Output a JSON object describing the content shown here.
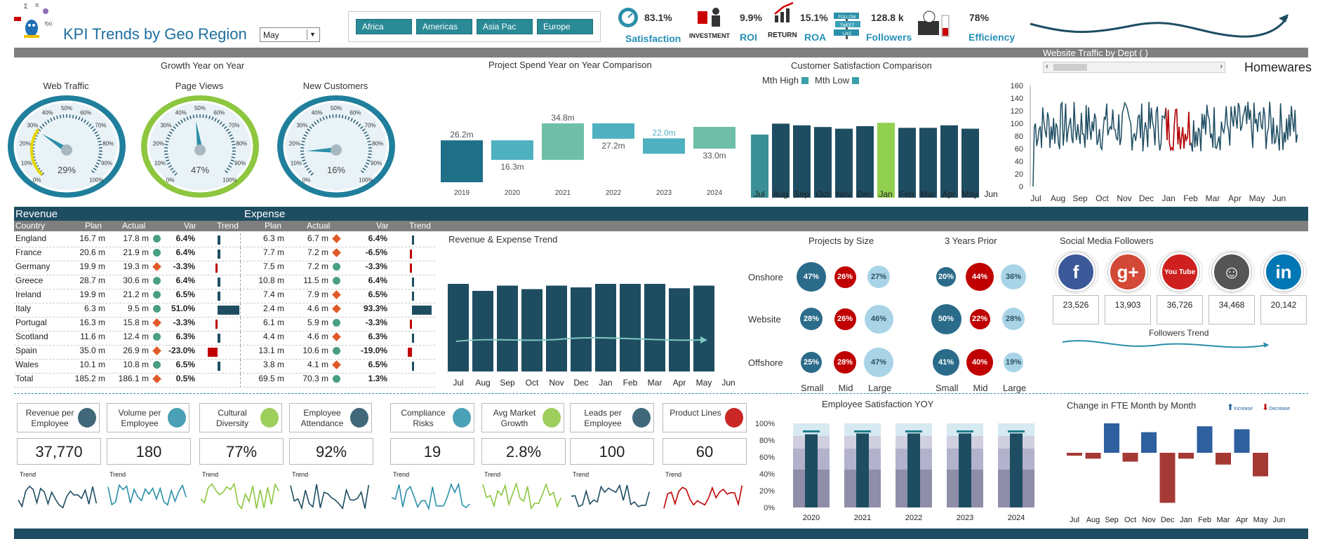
{
  "header": {
    "title": "KPI Trends by Geo Region",
    "month": "May",
    "regions": [
      "Africa",
      "Americas",
      "Asia Pac",
      "Europe"
    ]
  },
  "kpis": [
    {
      "value": "83.1%",
      "label": "Satisfaction",
      "icon": "speedometer-icon"
    },
    {
      "value": "9.9%",
      "label": "ROI",
      "caption": "INVESTMENT",
      "icon": "investment-icon"
    },
    {
      "value": "15.1%",
      "label": "ROA",
      "caption": "RETURN",
      "icon": "return-arrow-icon"
    },
    {
      "value": "128.8 k",
      "label": "Followers",
      "caption": "FOLLOW TWEET LIKE",
      "icon": "followers-sign-icon"
    },
    {
      "value": "78%",
      "label": "Efficiency",
      "icon": "wallet-icon"
    }
  ],
  "sections": {
    "growth": "Growth Year on Year",
    "spend": "Project Spend Year on Year Comparison",
    "csat": "Customer Satisfaction Comparison",
    "traffic": "Website Traffic by Dept (",
    "traffic_dept": "Homewares",
    "rev_exp_trend": "Revenue & Expense Trend",
    "projects_size": "Projects by Size",
    "years_prior": "3 Years Prior",
    "social": "Social Media Followers",
    "followers_trend": "Followers Trend",
    "emp_sat": "Employee Satisfaction YOY",
    "fte": "Change in FTE Month by Month"
  },
  "gauges": [
    {
      "title": "Web Traffic",
      "value": "29%",
      "pct": 29,
      "color": "#1f7f9c"
    },
    {
      "title": "Page Views",
      "value": "47%",
      "pct": 47,
      "color": "#8dc63f"
    },
    {
      "title": "New Customers",
      "value": "16%",
      "pct": 16,
      "color": "#1f7f9c"
    }
  ],
  "gauge_ticks": [
    "0%",
    "10%",
    "20%",
    "30%",
    "40%",
    "50%",
    "60%",
    "70%",
    "80%",
    "90%",
    "100%"
  ],
  "csat_legend": {
    "high": "Mth High",
    "low": "Mth Low"
  },
  "table": {
    "rev_title": "Revenue",
    "exp_title": "Expense",
    "columns": [
      "Country",
      "Plan",
      "Actual",
      "Var",
      "Trend",
      "Plan",
      "Actual",
      "Var",
      "Trend"
    ],
    "rows": [
      [
        "England",
        "16.7 m",
        "17.8 m",
        "6.4%",
        "6.3 m",
        "6.7 m",
        "6.4%"
      ],
      [
        "France",
        "20.6 m",
        "21.9 m",
        "6.4%",
        "7.7 m",
        "7.2 m",
        "-6.5%"
      ],
      [
        "Germany",
        "19.9 m",
        "19.3 m",
        "-3.3%",
        "7.5 m",
        "7.2 m",
        "-3.3%"
      ],
      [
        "Greece",
        "28.7 m",
        "30.6 m",
        "6.4%",
        "10.8 m",
        "11.5 m",
        "6.4%"
      ],
      [
        "Ireland",
        "19.9 m",
        "21.2 m",
        "6.5%",
        "7.4 m",
        "7.9 m",
        "6.5%"
      ],
      [
        "Italy",
        "6.3 m",
        "9.5 m",
        "51.0%",
        "2.4 m",
        "4.6 m",
        "93.3%"
      ],
      [
        "Portugal",
        "16.3 m",
        "15.8 m",
        "-3.3%",
        "6.1 m",
        "5.9 m",
        "-3.3%"
      ],
      [
        "Scotland",
        "11.6 m",
        "12.4 m",
        "6.3%",
        "4.4 m",
        "4.6 m",
        "6.3%"
      ],
      [
        "Spain",
        "35.0 m",
        "26.9 m",
        "-23.0%",
        "13.1 m",
        "10.6 m",
        "-19.0%"
      ],
      [
        "Wales",
        "10.1 m",
        "10.8 m",
        "6.5%",
        "3.8 m",
        "4.1 m",
        "6.5%"
      ],
      [
        "Total",
        "185.2 m",
        "186.1 m",
        "0.5%",
        "69.5 m",
        "70.3 m",
        "1.3%"
      ]
    ],
    "rev_status": [
      "g",
      "g",
      "r",
      "g",
      "g",
      "g",
      "r",
      "g",
      "r",
      "g",
      "r"
    ],
    "exp_status": [
      "r",
      "r",
      "g",
      "g",
      "r",
      "r",
      "g",
      "r",
      "g",
      "r",
      "g"
    ],
    "rev_var_num": [
      6.4,
      6.4,
      -3.3,
      6.4,
      6.5,
      51.0,
      -3.3,
      6.3,
      -23.0,
      6.5
    ],
    "exp_var_num": [
      6.4,
      -6.5,
      -3.3,
      6.4,
      6.5,
      93.3,
      -3.3,
      6.3,
      -19.0,
      6.5
    ]
  },
  "projects": {
    "rows": [
      "Onshore",
      "Website",
      "Offshore"
    ],
    "cols": [
      "Small",
      "Mid",
      "Large"
    ],
    "current": [
      [
        "47%",
        "26%",
        "27%"
      ],
      [
        "28%",
        "26%",
        "46%"
      ],
      [
        "25%",
        "28%",
        "47%"
      ]
    ],
    "prior": [
      [
        "20%",
        "44%",
        "36%"
      ],
      [
        "50%",
        "22%",
        "28%"
      ],
      [
        "41%",
        "40%",
        "19%"
      ]
    ]
  },
  "social": [
    {
      "name": "facebook-icon",
      "glyph": "f",
      "color": "#3b5998",
      "value": "23,526"
    },
    {
      "name": "google-plus-icon",
      "glyph": "g+",
      "color": "#d34836",
      "value": "13,903"
    },
    {
      "name": "youtube-icon",
      "glyph": "You Tube",
      "color": "#cd201f",
      "value": "36,726"
    },
    {
      "name": "reddit-icon",
      "glyph": "☺",
      "color": "#555",
      "value": "34,468"
    },
    {
      "name": "linkedin-icon",
      "glyph": "in",
      "color": "#0077b5",
      "value": "20,142"
    }
  ],
  "cards": [
    {
      "label": "Revenue per Employee",
      "value": "37,770",
      "trend": "Trend",
      "color": "#1e4d62",
      "icon": "money-bag-icon"
    },
    {
      "label": "Volume per Employee",
      "value": "180",
      "trend": "Trend",
      "color": "#2a8fa8",
      "icon": "speaker-icon"
    },
    {
      "label": "Cultural Diversity",
      "value": "77%",
      "trend": "Trend",
      "color": "#8dc63f",
      "icon": "diversity-icon"
    },
    {
      "label": "Employee Attendance",
      "value": "92%",
      "trend": "Trend",
      "color": "#1e4d62",
      "icon": "person-icon"
    },
    {
      "label": "Compliance Risks",
      "value": "19",
      "trend": "Trend",
      "color": "#2a8fa8",
      "icon": "thief-icon"
    },
    {
      "label": "Avg Market Growth",
      "value": "2.8%",
      "trend": "Trend",
      "color": "#8dc63f",
      "icon": "rocket-icon"
    },
    {
      "label": "Leads per Employee",
      "value": "100",
      "trend": "Trend",
      "color": "#1e4d62",
      "icon": "cart-icon"
    },
    {
      "label": "Product Lines",
      "value": "60",
      "trend": "Trend",
      "color": "#c00000",
      "icon": "products-icon"
    }
  ],
  "chart_data": [
    {
      "type": "bar",
      "title": "Project Spend Year on Year Comparison",
      "categories": [
        "2019",
        "2020",
        "2021",
        "2022",
        "2023",
        "2024"
      ],
      "labels": [
        "26.2m",
        "16.3m",
        "34.8m",
        "27.2m",
        "22.0m",
        "33.0m"
      ],
      "values": [
        26.2,
        16.3,
        34.8,
        27.2,
        22.0,
        33.0
      ]
    },
    {
      "type": "bar",
      "title": "Customer Satisfaction Comparison",
      "categories": [
        "Jul",
        "Aug",
        "Sep",
        "Oct",
        "Nov",
        "Dec",
        "Jan",
        "Feb",
        "Mar",
        "Apr",
        "May",
        "Jun"
      ],
      "values": [
        75,
        88,
        86,
        84,
        82,
        85,
        89,
        83,
        83,
        86,
        82,
        0
      ],
      "highlight": {
        "Jul": "#3a8f96",
        "Jan": "#92d050"
      }
    },
    {
      "type": "line",
      "title": "Website Traffic by Dept",
      "categories": [
        "Jul",
        "Aug",
        "Sep",
        "Oct",
        "Nov",
        "Dec",
        "Jan",
        "Feb",
        "Mar",
        "Apr",
        "May",
        "Jun"
      ],
      "yticks": [
        0,
        20,
        40,
        60,
        80,
        100,
        120,
        140,
        160
      ],
      "ylim": [
        0,
        160
      ]
    },
    {
      "type": "bar",
      "title": "Revenue & Expense Trend",
      "categories": [
        "Jul",
        "Aug",
        "Sep",
        "Oct",
        "Nov",
        "Dec",
        "Jan",
        "Feb",
        "Mar",
        "Apr",
        "May",
        "Jun"
      ],
      "values": [
        100,
        92,
        98,
        94,
        98,
        96,
        100,
        100,
        100,
        95,
        98,
        0
      ]
    },
    {
      "type": "bar",
      "title": "Employee Satisfaction YOY",
      "categories": [
        "2020",
        "2021",
        "2022",
        "2023",
        "2024"
      ],
      "values": [
        87,
        88,
        88,
        88,
        88
      ],
      "yticks": [
        "0%",
        "20%",
        "40%",
        "60%",
        "80%",
        "100%"
      ]
    },
    {
      "type": "bar",
      "title": "Change in FTE Month by Month",
      "categories": [
        "Jul",
        "Aug",
        "Sep",
        "Oct",
        "Nov",
        "Dec",
        "Jan",
        "Feb",
        "Mar",
        "Apr",
        "May",
        "Jun"
      ],
      "values": [
        -1,
        -2,
        10,
        -3,
        7,
        -17,
        -2,
        9,
        -4,
        8,
        -8,
        0
      ],
      "legend": [
        "Increase",
        "Decrease"
      ]
    }
  ]
}
